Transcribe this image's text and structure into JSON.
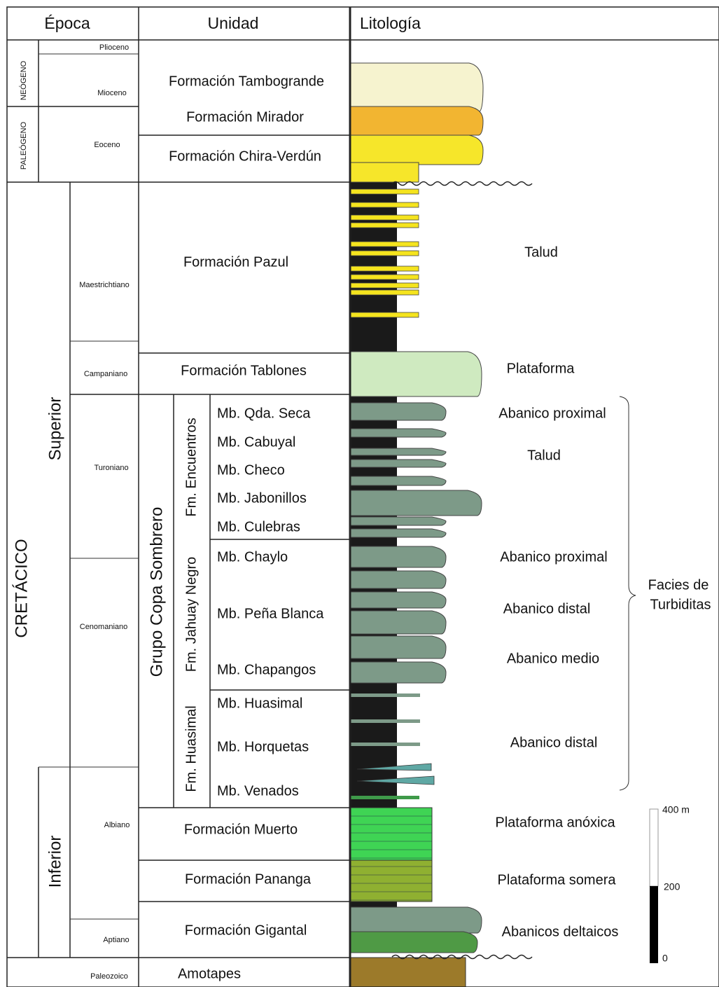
{
  "header": [
    "Época",
    "Unidad",
    "Litología"
  ],
  "eras": [
    "NEÓGENO",
    "PALEÓGENO",
    "CRETÁCICO"
  ],
  "series": [
    "Superior",
    "Inferior"
  ],
  "stages": [
    "Plioceno",
    "Mioceno",
    "Eoceno",
    "Maestrichtiano",
    "Campaniano",
    "Turoniano",
    "Cenomaniano",
    "Albiano",
    "Aptiano",
    "Paleozoico"
  ],
  "formations": [
    "Formación Tambogrande",
    "Formación Mirador",
    "Formación Chira-Verdún",
    "Formación Pazul",
    "Formación Tablones",
    "Formación Muerto",
    "Formación Pananga",
    "Formación Gigantal",
    "Amotapes"
  ],
  "group": "Grupo Copa Sombrero",
  "sub_formations": [
    "Fm. Encuentros",
    "Fm. Jahuay Negro",
    "Fm. Huasimal"
  ],
  "members": [
    "Mb. Qda. Seca",
    "Mb. Cabuyal",
    "Mb. Checo",
    "Mb. Jabonillos",
    "Mb. Culebras",
    "Mb. Chaylo",
    "Mb. Peña Blanca",
    "Mb. Chapangos",
    "Mb. Huasimal",
    "Mb. Horquetas",
    "Mb. Venados"
  ],
  "environments": [
    "Talud",
    "Plataforma",
    "Abanico proximal",
    "Talud",
    "Abanico proximal",
    "Abanico distal",
    "Abanico medio",
    "Abanico distal",
    "Plataforma anóxica",
    "Plataforma somera",
    "Abanicos deltaicos"
  ],
  "bracket_label": [
    "Facies de",
    "Turbiditas"
  ],
  "scale": [
    "400 m",
    "200",
    "0"
  ]
}
